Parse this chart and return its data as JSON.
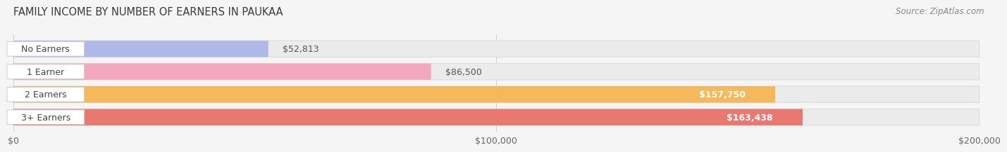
{
  "title": "FAMILY INCOME BY NUMBER OF EARNERS IN PAUKAA",
  "source": "Source: ZipAtlas.com",
  "categories": [
    "No Earners",
    "1 Earner",
    "2 Earners",
    "3+ Earners"
  ],
  "values": [
    52813,
    86500,
    157750,
    163438
  ],
  "bar_colors": [
    "#b0b8e8",
    "#f4a8c0",
    "#f5b85a",
    "#e87870"
  ],
  "value_label_inside": [
    false,
    false,
    true,
    true
  ],
  "value_labels": [
    "$52,813",
    "$86,500",
    "$157,750",
    "$163,438"
  ],
  "xlim": [
    0,
    200000
  ],
  "xticks": [
    0,
    100000,
    200000
  ],
  "xtick_labels": [
    "$0",
    "$100,000",
    "$200,000"
  ],
  "background_color": "#f5f5f5",
  "bar_bg_color": "#ebebeb",
  "bar_bg_edge_color": "#dddddd",
  "title_fontsize": 10.5,
  "source_fontsize": 8.5,
  "tick_fontsize": 9,
  "label_fontsize": 9,
  "value_fontsize": 9
}
